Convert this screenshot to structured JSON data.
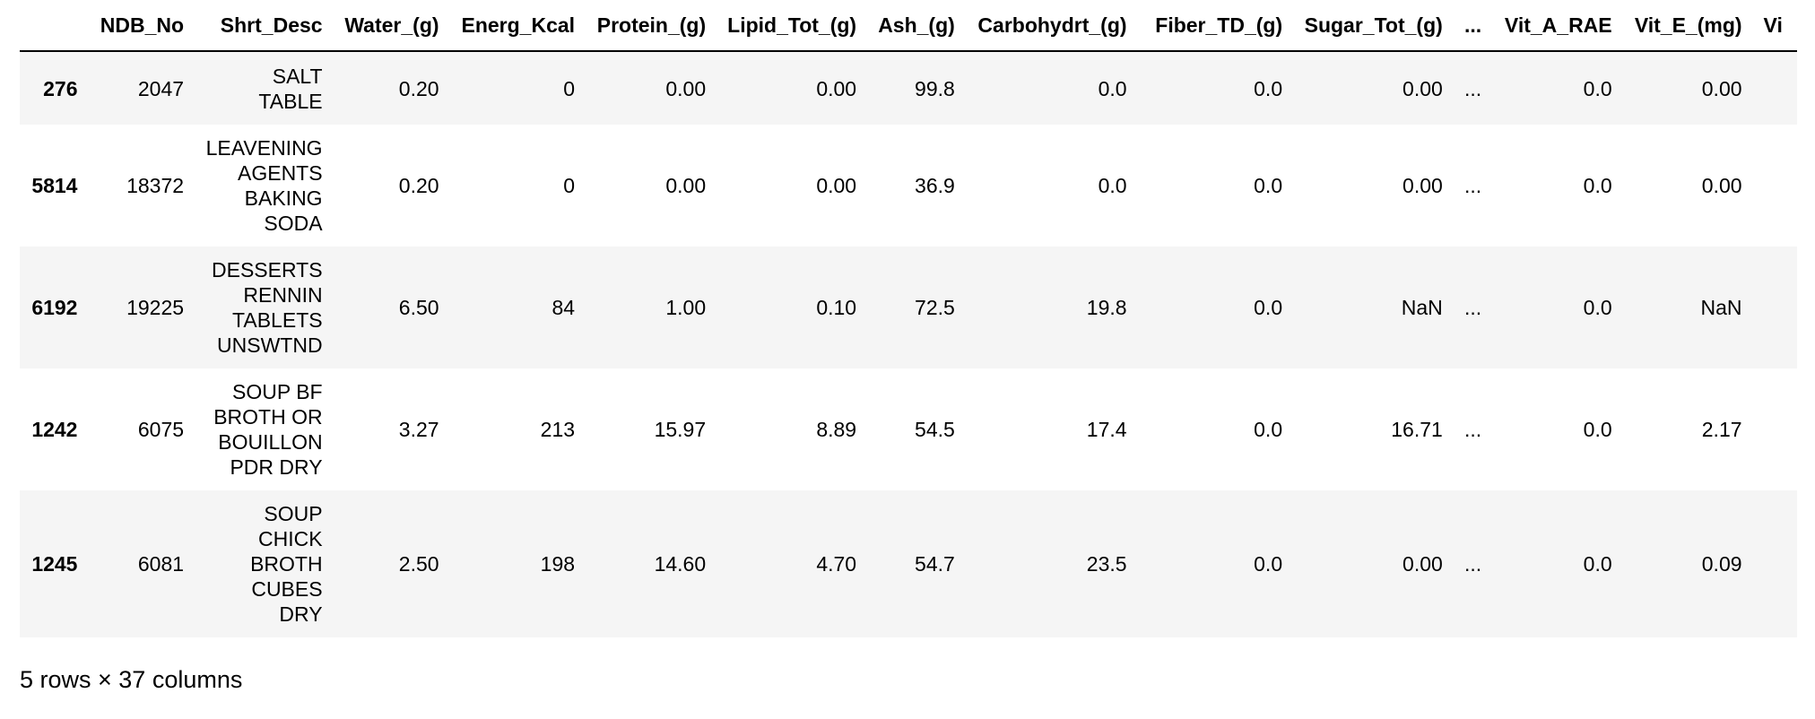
{
  "table": {
    "columns": [
      "",
      "NDB_No",
      "Shrt_Desc",
      "Water_(g)",
      "Energ_Kcal",
      "Protein_(g)",
      "Lipid_Tot_(g)",
      "Ash_(g)",
      "Carbohydrt_(g)",
      "Fiber_TD_(g)",
      "Sugar_Tot_(g)",
      "...",
      "Vit_A_RAE",
      "Vit_E_(mg)",
      "Vi"
    ],
    "rows": [
      {
        "index": "276",
        "desc_lines": [
          "SALT",
          "TABLE"
        ],
        "cells": [
          "2047",
          "0.20",
          "0",
          "0.00",
          "0.00",
          "99.8",
          "0.0",
          "0.0",
          "0.00",
          "...",
          "0.0",
          "0.00",
          ""
        ]
      },
      {
        "index": "5814",
        "desc_lines": [
          "LEAVENING",
          "AGENTS",
          "BAKING",
          "SODA"
        ],
        "cells": [
          "18372",
          "0.20",
          "0",
          "0.00",
          "0.00",
          "36.9",
          "0.0",
          "0.0",
          "0.00",
          "...",
          "0.0",
          "0.00",
          ""
        ]
      },
      {
        "index": "6192",
        "desc_lines": [
          "DESSERTS",
          "RENNIN",
          "TABLETS",
          "UNSWTND"
        ],
        "cells": [
          "19225",
          "6.50",
          "84",
          "1.00",
          "0.10",
          "72.5",
          "19.8",
          "0.0",
          "NaN",
          "...",
          "0.0",
          "NaN",
          ""
        ]
      },
      {
        "index": "1242",
        "desc_lines": [
          "SOUP BF",
          "BROTH OR",
          "BOUILLON",
          "PDR DRY"
        ],
        "cells": [
          "6075",
          "3.27",
          "213",
          "15.97",
          "8.89",
          "54.5",
          "17.4",
          "0.0",
          "16.71",
          "...",
          "0.0",
          "2.17",
          ""
        ]
      },
      {
        "index": "1245",
        "desc_lines": [
          "SOUP",
          "CHICK",
          "BROTH",
          "CUBES",
          "DRY"
        ],
        "cells": [
          "6081",
          "2.50",
          "198",
          "14.60",
          "4.70",
          "54.7",
          "23.5",
          "0.0",
          "0.00",
          "...",
          "0.0",
          "0.09",
          ""
        ]
      }
    ]
  },
  "footer": {
    "shape_text": "5 rows × 37 columns"
  }
}
